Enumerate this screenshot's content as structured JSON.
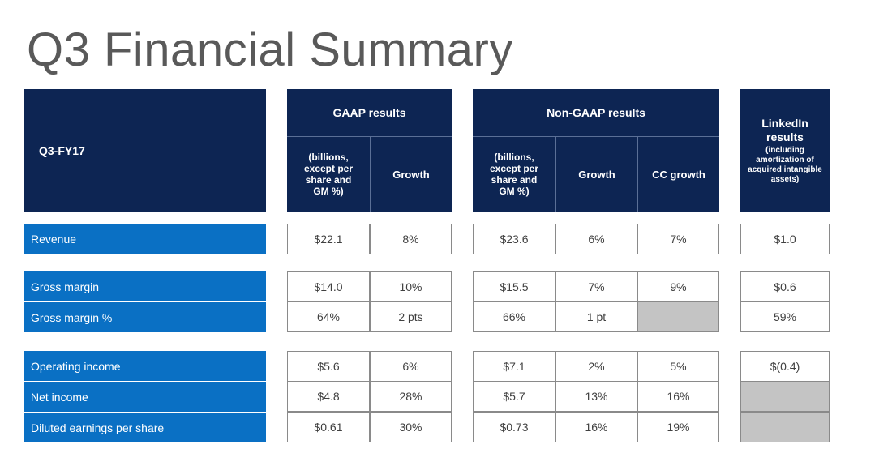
{
  "title": "Q3 Financial Summary",
  "header": {
    "period": "Q3-FY17",
    "gaap": {
      "title": "GAAP results",
      "col_amount": "(billions, except per share and GM %)",
      "col_growth": "Growth"
    },
    "nongaap": {
      "title": "Non-GAAP results",
      "col_amount": "(billions, except per share and GM %)",
      "col_growth": "Growth",
      "col_cc": "CC growth"
    },
    "linkedin": {
      "title": "LinkedIn results",
      "note": "(including amortization of acquired intangible assets)"
    }
  },
  "rows": [
    {
      "label": "Revenue",
      "gaap_value": "$22.1",
      "gaap_growth": "8%",
      "ng_value": "$23.6",
      "ng_growth": "6%",
      "ng_cc": "7%",
      "linkedin": "$1.0"
    },
    {
      "label": "Gross margin",
      "gaap_value": "$14.0",
      "gaap_growth": "10%",
      "ng_value": "$15.5",
      "ng_growth": "7%",
      "ng_cc": "9%",
      "linkedin": "$0.6"
    },
    {
      "label": "Gross margin %",
      "gaap_value": "64%",
      "gaap_growth": "2 pts",
      "ng_value": "66%",
      "ng_growth": "1 pt",
      "ng_cc": "",
      "linkedin": "59%"
    },
    {
      "label": "Operating income",
      "gaap_value": "$5.6",
      "gaap_growth": "6%",
      "ng_value": "$7.1",
      "ng_growth": "2%",
      "ng_cc": "5%",
      "linkedin": "$(0.4)"
    },
    {
      "label": "Net income",
      "gaap_value": "$4.8",
      "gaap_growth": "28%",
      "ng_value": "$5.7",
      "ng_growth": "13%",
      "ng_cc": "16%",
      "linkedin": ""
    },
    {
      "label": "Diluted earnings per share",
      "gaap_value": "$0.61",
      "gaap_growth": "30%",
      "ng_value": "$0.73",
      "ng_growth": "16%",
      "ng_cc": "19%",
      "linkedin": ""
    }
  ]
}
